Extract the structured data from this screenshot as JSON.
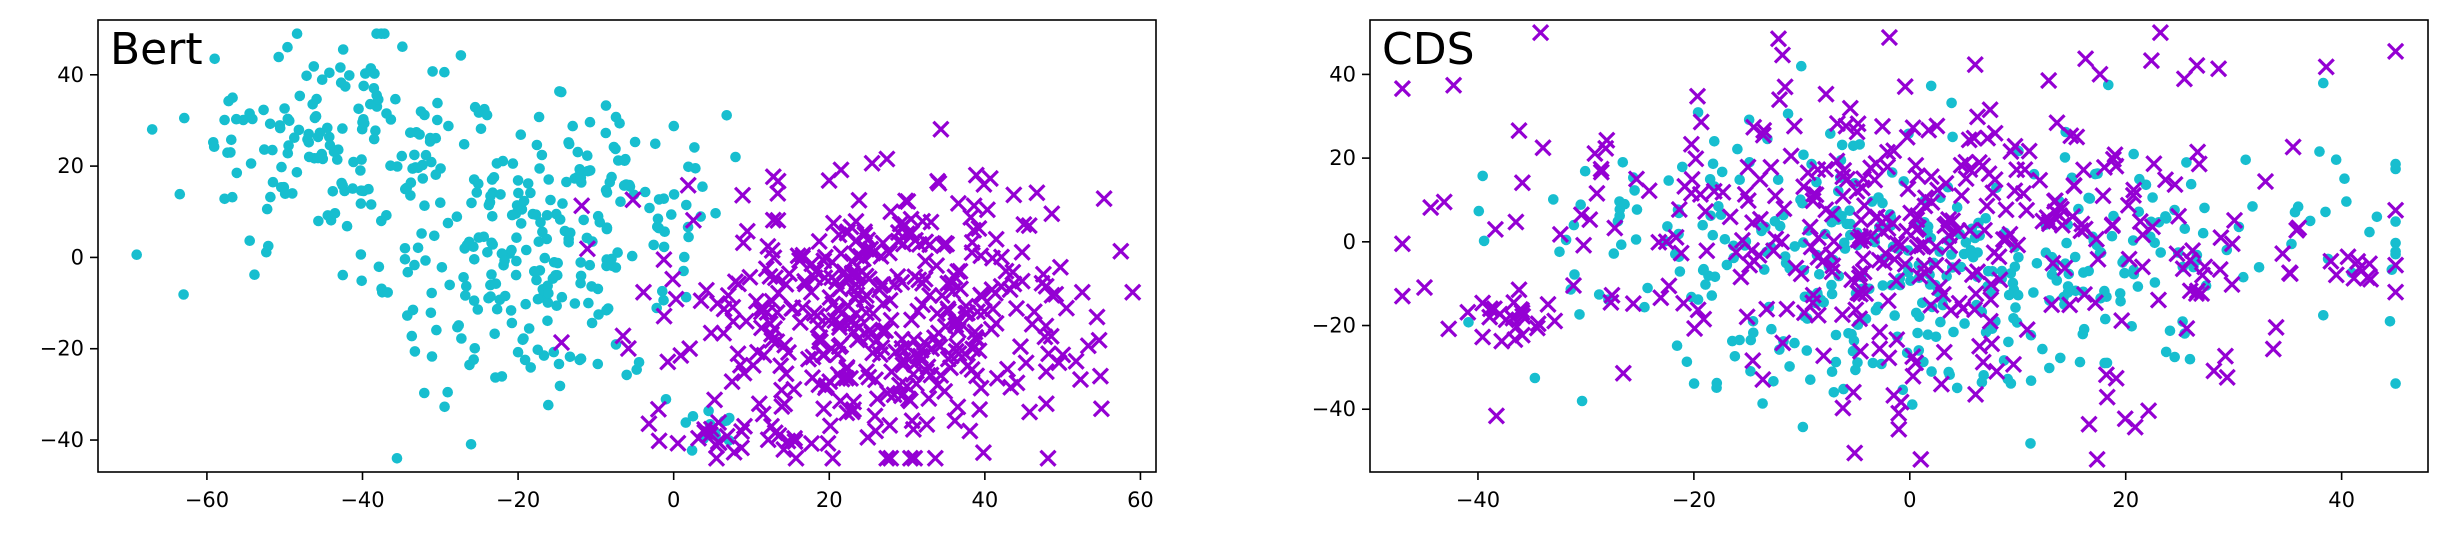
{
  "colors": {
    "group_a": "#17becf",
    "group_b": "#9400d3",
    "axis": "#000000",
    "background": "#ffffff"
  },
  "chart_data": [
    {
      "type": "scatter",
      "title": "Bert",
      "xlabel": "",
      "ylabel": "",
      "xlim": [
        -74,
        62
      ],
      "ylim": [
        -47,
        52
      ],
      "xticks": [
        -60,
        -40,
        -20,
        0,
        20,
        40,
        60
      ],
      "yticks": [
        -40,
        -20,
        0,
        20,
        40
      ],
      "xtick_labels": [
        "−60",
        "−40",
        "−20",
        "0",
        "20",
        "40",
        "60"
      ],
      "ytick_labels": [
        "−40",
        "−20",
        "0",
        "20",
        "40"
      ],
      "grid": false,
      "series": [
        {
          "marker": "circle",
          "color": "#17becf",
          "clusters": [
            {
              "cx": -43,
              "cy": 25,
              "sx": 10,
              "sy": 12,
              "n": 170
            },
            {
              "cx": -18,
              "cy": -2,
              "sx": 9,
              "sy": 15,
              "n": 200
            },
            {
              "cx": -5,
              "cy": 15,
              "sx": 6,
              "sy": 10,
              "n": 50
            },
            {
              "cx": 6,
              "cy": -36,
              "sx": 5,
              "sy": 3,
              "n": 12
            }
          ]
        },
        {
          "marker": "x",
          "color": "#9400d3",
          "clusters": [
            {
              "cx": 27,
              "cy": -12,
              "sx": 13,
              "sy": 15,
              "n": 420
            },
            {
              "cx": 10,
              "cy": -40,
              "sx": 6,
              "sy": 2.5,
              "n": 20
            }
          ]
        }
      ]
    },
    {
      "type": "scatter",
      "title": "CDS",
      "xlabel": "",
      "ylabel": "",
      "xlim": [
        -50,
        48
      ],
      "ylim": [
        -55,
        53
      ],
      "xticks": [
        -40,
        -20,
        0,
        20,
        40
      ],
      "yticks": [
        -40,
        -20,
        0,
        20,
        40
      ],
      "xtick_labels": [
        "−40",
        "−20",
        "0",
        "20",
        "40"
      ],
      "ytick_labels": [
        "−40",
        "−20",
        "0",
        "20",
        "40"
      ],
      "grid": false,
      "series": [
        {
          "marker": "circle",
          "color": "#17becf",
          "clusters": [
            {
              "cx": -3,
              "cy": -5,
              "sx": 15,
              "sy": 17,
              "n": 360
            },
            {
              "cx": 30,
              "cy": 0,
              "sx": 9,
              "sy": 12,
              "n": 60
            }
          ]
        },
        {
          "marker": "x",
          "color": "#9400d3",
          "clusters": [
            {
              "cx": 0,
              "cy": 2,
              "sx": 17,
              "sy": 20,
              "n": 380
            },
            {
              "cx": -38,
              "cy": -18,
              "sx": 3,
              "sy": 4,
              "n": 25
            },
            {
              "cx": 42,
              "cy": -8,
              "sx": 3,
              "sy": 3,
              "n": 10
            }
          ]
        }
      ]
    }
  ]
}
